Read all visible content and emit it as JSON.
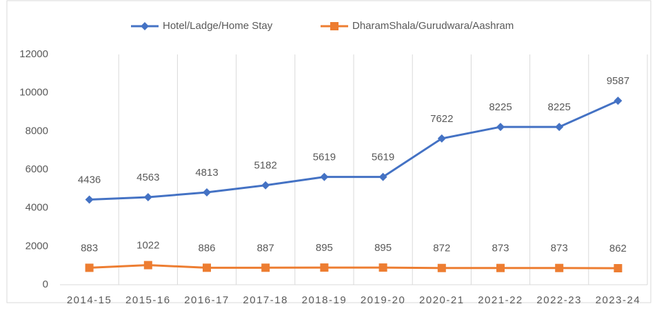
{
  "chart_data": {
    "type": "line",
    "categories": [
      "2014-15",
      "2015-16",
      "2016-17",
      "2017-18",
      "2018-19",
      "2019-20",
      "2020-21",
      "2021-22",
      "2022-23",
      "2023-24"
    ],
    "series": [
      {
        "name": "Hotel/Ladge/Home Stay",
        "color": "#4472c4",
        "marker": "diamond",
        "values": [
          4436,
          4563,
          4813,
          5182,
          5619,
          5619,
          7622,
          8225,
          8225,
          9587
        ]
      },
      {
        "name": "DharamShala/Gurudwara/Aashram",
        "color": "#ed7d31",
        "marker": "square",
        "values": [
          883,
          1022,
          886,
          887,
          895,
          895,
          872,
          873,
          873,
          862
        ]
      }
    ],
    "ylim": [
      0,
      12000
    ],
    "yticks": [
      0,
      2000,
      4000,
      6000,
      8000,
      10000,
      12000
    ],
    "legend": "top",
    "data_labels": true
  }
}
